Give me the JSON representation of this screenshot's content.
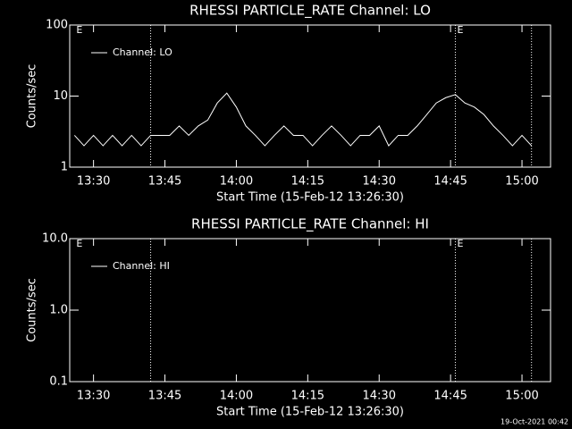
{
  "chart_data": [
    {
      "type": "line",
      "title": "RHESSI PARTICLE_RATE Channel: LO",
      "xlabel": "Start Time (15-Feb-12 13:26:30)",
      "ylabel": "Counts/sec",
      "xlim": [
        "13:25",
        "15:06"
      ],
      "xticks": [
        "13:30",
        "13:45",
        "14:00",
        "14:15",
        "14:30",
        "14:45",
        "15:00"
      ],
      "ylim": [
        1,
        100
      ],
      "yticks": [
        1,
        10,
        100
      ],
      "log_y": true,
      "legend": "top-left",
      "x": [
        "13:26",
        "13:28",
        "13:30",
        "13:32",
        "13:34",
        "13:36",
        "13:38",
        "13:40",
        "13:42",
        "13:44",
        "13:46",
        "13:48",
        "13:50",
        "13:52",
        "13:54",
        "13:56",
        "13:58",
        "14:00",
        "14:02",
        "14:04",
        "14:06",
        "14:08",
        "14:10",
        "14:12",
        "14:14",
        "14:16",
        "14:18",
        "14:20",
        "14:22",
        "14:24",
        "14:26",
        "14:28",
        "14:30",
        "14:32",
        "14:34",
        "14:36",
        "14:38",
        "14:40",
        "14:42",
        "14:44",
        "14:46",
        "14:48",
        "14:50",
        "14:52",
        "14:54",
        "14:56",
        "14:58",
        "15:00",
        "15:02"
      ],
      "series": [
        {
          "name": "Channel: LO",
          "color": "#ffffff",
          "values": [
            2.8,
            2,
            2.8,
            2,
            2.8,
            2,
            2.8,
            2,
            2.8,
            2.8,
            2.8,
            3.8,
            2.8,
            3.8,
            4.6,
            8,
            11,
            7,
            3.8,
            2.8,
            2,
            2.8,
            3.8,
            2.8,
            2.8,
            2,
            2.8,
            3.8,
            2.8,
            2,
            2.8,
            2.8,
            3.8,
            2,
            2.8,
            2.8,
            3.8,
            5.5,
            8,
            9.5,
            10.5,
            8,
            7,
            5.5,
            3.8,
            2.8,
            2,
            2.8,
            2
          ]
        }
      ],
      "vlines": [
        "13:42",
        "14:46",
        "15:02"
      ],
      "event_labels": [
        {
          "x": "13:26",
          "text": "E"
        },
        {
          "x": "14:46",
          "text": "E"
        }
      ]
    },
    {
      "type": "line",
      "title": "RHESSI PARTICLE_RATE Channel: HI",
      "xlabel": "Start Time (15-Feb-12 13:26:30)",
      "ylabel": "Counts/sec",
      "xlim": [
        "13:25",
        "15:06"
      ],
      "xticks": [
        "13:30",
        "13:45",
        "14:00",
        "14:15",
        "14:30",
        "14:45",
        "15:00"
      ],
      "ylim": [
        0.1,
        10
      ],
      "yticks": [
        {
          "value": 0.1,
          "label": "0.1"
        },
        {
          "value": 1,
          "label": "1.0"
        },
        {
          "value": 10,
          "label": "10.0"
        }
      ],
      "log_y": true,
      "legend": "top-left",
      "x": [],
      "series": [
        {
          "name": "Channel: HI",
          "color": "#ffffff",
          "values": []
        }
      ],
      "vlines": [
        "13:42",
        "14:46",
        "15:02"
      ],
      "event_labels": [
        {
          "x": "13:26",
          "text": "E"
        },
        {
          "x": "14:46",
          "text": "E"
        }
      ]
    }
  ],
  "footer": "19-Oct-2021 00:42"
}
